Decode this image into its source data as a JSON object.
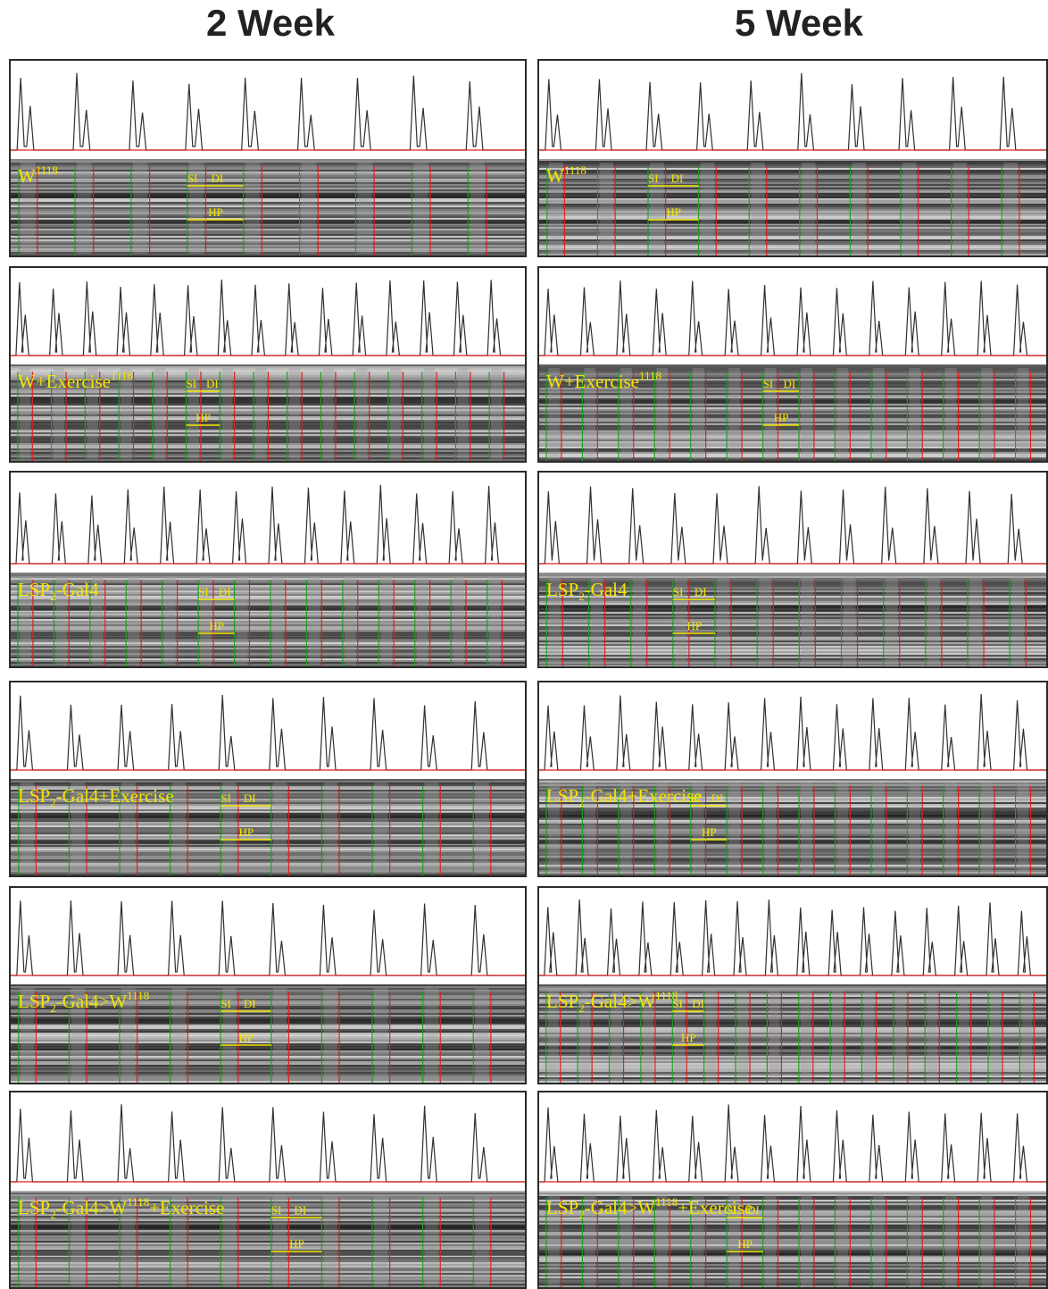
{
  "columns": [
    {
      "title": "2 Week"
    },
    {
      "title": "5 Week"
    }
  ],
  "rows": [
    {
      "label_main": "W",
      "label_sup": "1118",
      "label_suffix": ""
    },
    {
      "label_main": "W",
      "label_sup": "1118",
      "label_suffix": "+Exercise"
    },
    {
      "label_main": "LSP",
      "label_sub": "2",
      "label_suffix": "-Gal4"
    },
    {
      "label_main": "LSP",
      "label_sub": "2",
      "label_suffix": "-Gal4+Exercise"
    },
    {
      "label_main": "LSP",
      "label_sub": "2",
      "label_suffix": "-Gal4>W",
      "label_sup": "1118"
    },
    {
      "label_main": "LSP",
      "label_sub": "2",
      "label_suffix": "-Gal4>W",
      "label_sup": "1118",
      "label_suffix2": "+Exercise"
    }
  ],
  "annotations": {
    "si": "SI",
    "di": "DI",
    "hp": "HP"
  },
  "colors": {
    "threshold_line": "#e02020",
    "systole_marker": "#20a020",
    "diastole_marker": "#e02020",
    "annotation_text": "#f2e600",
    "trace": "#303030"
  }
}
